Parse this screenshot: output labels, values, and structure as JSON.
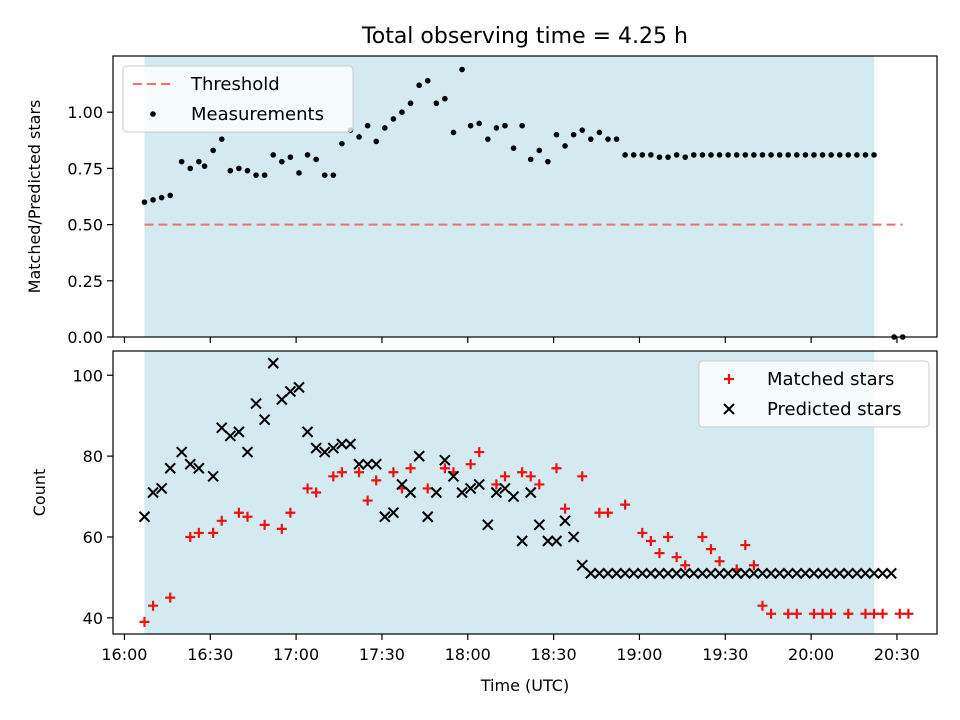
{
  "chart_data": {
    "title": "Total observing time = 4.25 h",
    "xlabel": "Time (UTC)",
    "x_ticks": [
      "16:00",
      "16:30",
      "17:00",
      "17:30",
      "18:00",
      "18:30",
      "19:00",
      "19:30",
      "20:00",
      "20:30"
    ],
    "x_domain": [
      "15:56",
      "20:44"
    ],
    "observing_window": [
      "16:07",
      "20:22"
    ],
    "shade_color": "#d2eaf0",
    "panels": [
      {
        "id": "ratio",
        "type": "scatter",
        "ylabel": "Matched/Predicted stars",
        "ylim": [
          0,
          1.25
        ],
        "y_ticks": [
          "0.00",
          "0.25",
          "0.50",
          "0.75",
          "1.00"
        ],
        "legend_position": "upper-left",
        "threshold": {
          "name": "Threshold",
          "value": 0.5,
          "x": [
            "16:07",
            "20:32"
          ],
          "color": "#f07070"
        },
        "series": [
          {
            "name": "Measurements",
            "marker": "dot",
            "color": "#000000",
            "x": [
              "16:07",
              "16:10",
              "16:13",
              "16:16",
              "16:20",
              "16:23",
              "16:26",
              "16:28",
              "16:31",
              "16:34",
              "16:37",
              "16:40",
              "16:43",
              "16:46",
              "16:49",
              "16:52",
              "16:55",
              "16:58",
              "17:01",
              "17:04",
              "17:07",
              "17:10",
              "17:13",
              "17:16",
              "17:19",
              "17:22",
              "17:25",
              "17:28",
              "17:31",
              "17:34",
              "17:37",
              "17:40",
              "17:43",
              "17:46",
              "17:49",
              "17:52",
              "17:55",
              "17:58",
              "18:01",
              "18:04",
              "18:07",
              "18:10",
              "18:13",
              "18:16",
              "18:19",
              "18:22",
              "18:25",
              "18:28",
              "18:31",
              "18:34",
              "18:37",
              "18:40",
              "18:43",
              "18:46",
              "18:49",
              "18:52",
              "18:55",
              "18:58",
              "19:01",
              "19:04",
              "19:07",
              "19:10",
              "19:13",
              "19:16",
              "19:19",
              "19:22",
              "19:25",
              "19:28",
              "19:31",
              "19:34",
              "19:37",
              "19:40",
              "19:43",
              "19:46",
              "19:49",
              "19:52",
              "19:55",
              "19:58",
              "20:01",
              "20:04",
              "20:07",
              "20:10",
              "20:13",
              "20:16",
              "20:19",
              "20:22",
              "20:29",
              "20:32"
            ],
            "y": [
              0.6,
              0.61,
              0.62,
              0.63,
              0.78,
              0.75,
              0.78,
              0.76,
              0.83,
              0.88,
              0.74,
              0.75,
              0.74,
              0.72,
              0.72,
              0.81,
              0.78,
              0.8,
              0.73,
              0.81,
              0.79,
              0.72,
              0.72,
              0.86,
              0.92,
              0.89,
              0.94,
              0.87,
              0.93,
              0.97,
              1.0,
              1.04,
              1.12,
              1.14,
              1.04,
              1.06,
              0.91,
              1.19,
              0.94,
              0.95,
              0.88,
              0.93,
              0.94,
              0.84,
              0.94,
              0.79,
              0.83,
              0.78,
              0.9,
              0.85,
              0.9,
              0.92,
              0.88,
              0.91,
              0.88,
              0.88,
              0.81,
              0.81,
              0.81,
              0.81,
              0.8,
              0.8,
              0.81,
              0.8,
              0.81,
              0.81,
              0.81,
              0.81,
              0.81,
              0.81,
              0.81,
              0.81,
              0.81,
              0.81,
              0.81,
              0.81,
              0.81,
              0.81,
              0.81,
              0.81,
              0.81,
              0.81,
              0.81,
              0.81,
              0.81,
              0.81,
              0.0,
              0.0
            ]
          }
        ]
      },
      {
        "id": "count",
        "type": "scatter",
        "ylabel": "Count",
        "ylim": [
          36,
          106
        ],
        "y_ticks": [
          "40",
          "60",
          "80",
          "100"
        ],
        "legend_position": "upper-right",
        "series": [
          {
            "name": "Matched stars",
            "marker": "plus",
            "color": "#ee1111",
            "x": [
              "16:07",
              "16:10",
              "16:16",
              "16:23",
              "16:26",
              "16:31",
              "16:34",
              "16:40",
              "16:43",
              "16:49",
              "16:55",
              "16:58",
              "17:04",
              "17:07",
              "17:13",
              "17:16",
              "17:22",
              "17:25",
              "17:28",
              "17:34",
              "17:37",
              "17:40",
              "17:46",
              "17:52",
              "17:55",
              "18:01",
              "18:04",
              "18:10",
              "18:13",
              "18:19",
              "18:22",
              "18:25",
              "18:31",
              "18:34",
              "18:40",
              "18:46",
              "18:49",
              "18:55",
              "19:01",
              "19:04",
              "19:07",
              "19:10",
              "19:13",
              "19:16",
              "19:22",
              "19:25",
              "19:28",
              "19:34",
              "19:37",
              "19:40",
              "19:43",
              "19:46",
              "19:52",
              "19:55",
              "20:01",
              "20:04",
              "20:07",
              "20:13",
              "20:19",
              "20:22",
              "20:25",
              "20:31",
              "20:34"
            ],
            "y": [
              39,
              43,
              45,
              60,
              61,
              61,
              64,
              66,
              65,
              63,
              62,
              66,
              72,
              71,
              75,
              76,
              76,
              69,
              74,
              76,
              72,
              77,
              72,
              77,
              76,
              78,
              81,
              73,
              75,
              76,
              75,
              73,
              77,
              67,
              75,
              66,
              66,
              68,
              61,
              59,
              56,
              60,
              55,
              53,
              60,
              57,
              54,
              52,
              58,
              53,
              43,
              41,
              41,
              41,
              41,
              41,
              41,
              41,
              41,
              41,
              41,
              41,
              41
            ]
          },
          {
            "name": "Predicted stars",
            "marker": "x",
            "color": "#000000",
            "x": [
              "16:07",
              "16:10",
              "16:13",
              "16:16",
              "16:20",
              "16:23",
              "16:26",
              "16:31",
              "16:34",
              "16:37",
              "16:40",
              "16:43",
              "16:46",
              "16:49",
              "16:52",
              "16:55",
              "16:58",
              "17:01",
              "17:04",
              "17:07",
              "17:10",
              "17:13",
              "17:16",
              "17:19",
              "17:22",
              "17:25",
              "17:28",
              "17:31",
              "17:34",
              "17:37",
              "17:40",
              "17:43",
              "17:46",
              "17:49",
              "17:52",
              "17:55",
              "17:58",
              "18:01",
              "18:04",
              "18:07",
              "18:10",
              "18:13",
              "18:16",
              "18:19",
              "18:22",
              "18:25",
              "18:28",
              "18:31",
              "18:34",
              "18:37",
              "18:40",
              "18:43",
              "18:46",
              "18:49",
              "18:52",
              "18:55",
              "18:58",
              "19:01",
              "19:04",
              "19:07",
              "19:10",
              "19:13",
              "19:16",
              "19:19",
              "19:22",
              "19:25",
              "19:28",
              "19:31",
              "19:34",
              "19:37",
              "19:40",
              "19:43",
              "19:46",
              "19:49",
              "19:52",
              "19:55",
              "19:58",
              "20:01",
              "20:04",
              "20:07",
              "20:10",
              "20:13",
              "20:16",
              "20:19",
              "20:22",
              "20:25",
              "20:28"
            ],
            "y": [
              65,
              71,
              72,
              77,
              81,
              78,
              77,
              75,
              87,
              85,
              86,
              81,
              93,
              89,
              103,
              94,
              96,
              97,
              86,
              82,
              81,
              82,
              83,
              83,
              78,
              78,
              78,
              65,
              66,
              73,
              71,
              80,
              65,
              71,
              79,
              75,
              71,
              72,
              73,
              63,
              71,
              72,
              70,
              59,
              71,
              63,
              59,
              59,
              64,
              60,
              53,
              51,
              51,
              51,
              51,
              51,
              51,
              51,
              51,
              51,
              51,
              51,
              51,
              51,
              51,
              51,
              51,
              51,
              51,
              51,
              51,
              51,
              51,
              51,
              51,
              51,
              51,
              51,
              51,
              51,
              51,
              51,
              51,
              51,
              51,
              51,
              51
            ]
          }
        ]
      }
    ]
  }
}
